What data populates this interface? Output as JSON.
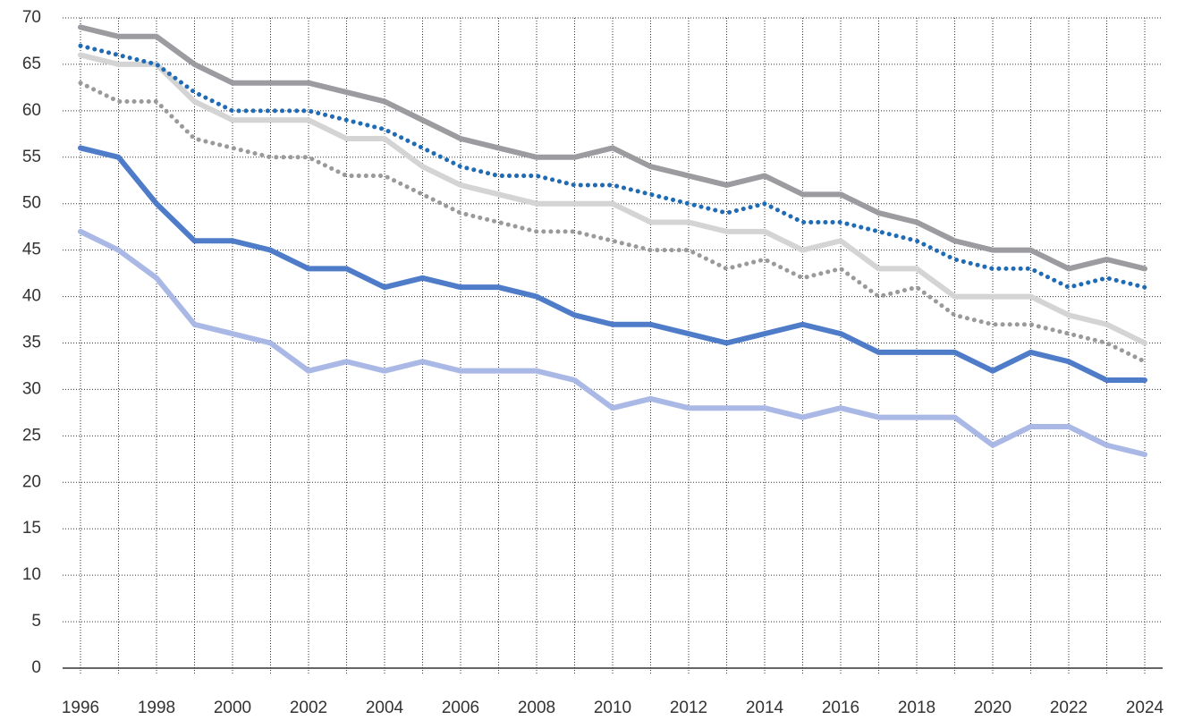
{
  "chart_data": {
    "type": "line",
    "x": [
      1996,
      1997,
      1998,
      1999,
      2000,
      2001,
      2002,
      2003,
      2004,
      2005,
      2006,
      2007,
      2008,
      2009,
      2010,
      2011,
      2012,
      2013,
      2014,
      2015,
      2016,
      2017,
      2018,
      2019,
      2020,
      2021,
      2022,
      2023,
      2024
    ],
    "series": [
      {
        "color": "#9b9ba0",
        "style": "solid",
        "values": [
          69,
          68,
          68,
          65,
          63,
          63,
          63,
          62,
          61,
          59,
          57,
          56,
          55,
          55,
          56,
          54,
          53,
          52,
          53,
          51,
          51,
          49,
          48,
          46,
          45,
          45,
          43,
          44,
          43
        ]
      },
      {
        "color": "#d4d4d4",
        "style": "solid",
        "values": [
          66,
          65,
          65,
          61,
          59,
          59,
          59,
          57,
          57,
          54,
          52,
          51,
          50,
          50,
          50,
          48,
          48,
          47,
          47,
          45,
          46,
          43,
          43,
          40,
          40,
          40,
          38,
          37,
          35
        ]
      },
      {
        "color": "#1f6bb5",
        "style": "dotted",
        "values": [
          67,
          66,
          65,
          62,
          60,
          60,
          60,
          59,
          58,
          56,
          54,
          53,
          53,
          52,
          52,
          51,
          50,
          49,
          50,
          48,
          48,
          47,
          46,
          44,
          43,
          43,
          41,
          42,
          41
        ]
      },
      {
        "color": "#9a9a9a",
        "style": "dotted",
        "values": [
          63,
          61,
          61,
          57,
          56,
          55,
          55,
          53,
          53,
          51,
          49,
          48,
          47,
          47,
          46,
          45,
          45,
          43,
          44,
          42,
          43,
          40,
          41,
          38,
          37,
          37,
          36,
          35,
          33
        ]
      },
      {
        "color": "#4f7cc9",
        "style": "solid",
        "values": [
          56,
          55,
          50,
          46,
          46,
          45,
          43,
          43,
          41,
          42,
          41,
          41,
          40,
          38,
          37,
          37,
          36,
          35,
          36,
          37,
          36,
          34,
          34,
          34,
          32,
          34,
          33,
          31,
          31
        ]
      },
      {
        "color": "#aab8e6",
        "style": "solid",
        "values": [
          47,
          45,
          42,
          37,
          36,
          35,
          32,
          33,
          32,
          33,
          32,
          32,
          32,
          31,
          28,
          29,
          28,
          28,
          28,
          27,
          28,
          27,
          27,
          27,
          24,
          26,
          26,
          24,
          23
        ]
      }
    ],
    "xlim": [
      1996,
      2024
    ],
    "xticks": [
      1996,
      1998,
      2000,
      2002,
      2004,
      2006,
      2008,
      2010,
      2012,
      2014,
      2016,
      2018,
      2020,
      2022,
      2024
    ],
    "ylim": [
      0,
      70
    ],
    "yticks": [
      0,
      5,
      10,
      15,
      20,
      25,
      30,
      35,
      40,
      45,
      50,
      55,
      60,
      65,
      70
    ],
    "grid": true
  }
}
